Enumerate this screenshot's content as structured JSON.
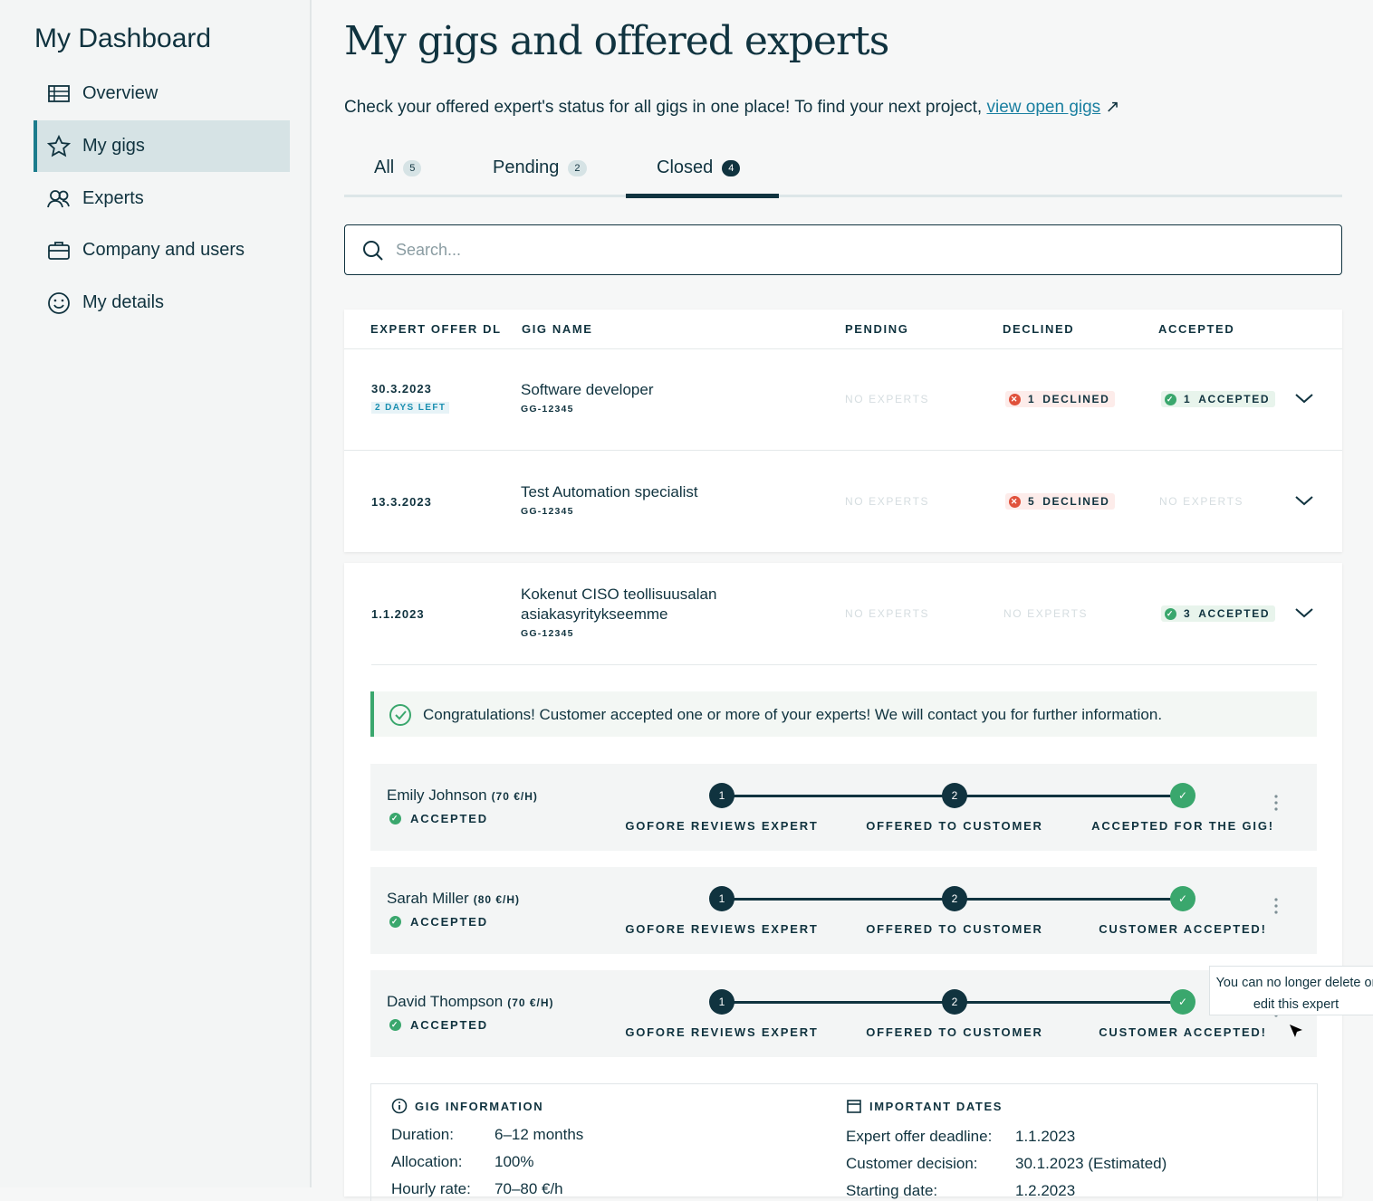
{
  "sidebar": {
    "title": "My Dashboard",
    "nav": [
      "Overview",
      "My gigs",
      "Experts",
      "Company and users",
      "My details"
    ]
  },
  "main": {
    "title": "My gigs and offered experts",
    "intro": "Check your offered expert's status for all gigs in one place! To find your next project,",
    "link": "view open gigs",
    "tabs": [
      {
        "label": "All",
        "count": 5
      },
      {
        "label": "Pending",
        "count": 2
      },
      {
        "label": "Closed",
        "count": 4
      }
    ],
    "search": "Search...",
    "table": {
      "headers": [
        "EXPERT OFFER DL",
        "GIG NAME",
        "PENDING",
        "DECLINED",
        "ACCEPTED"
      ],
      "rows": [
        {
          "date": "30.3.2023",
          "days_left": "2 DAYS LEFT",
          "name": "Software developer",
          "code": "GG-12345",
          "pending": "NO EXPERTS",
          "declined": {
            "count": 1,
            "label": "DECLINED"
          },
          "accepted": {
            "count": 1,
            "label": "ACCEPTED"
          }
        },
        {
          "date": "13.3.2023",
          "name": "Test Automation specialist",
          "code": "GG-12345",
          "pending": "NO EXPERTS",
          "declined": {
            "count": 5,
            "label": "DECLINED"
          },
          "accepted": "NO EXPERTS"
        },
        {
          "date": "1.1.2023",
          "name": "Kokenut CISO teollisuusalan asiakasyritykseemme",
          "code": "GG-12345",
          "pending": "NO EXPERTS",
          "declined": "NO EXPERTS",
          "accepted": {
            "count": 3,
            "label": "ACCEPTED"
          }
        }
      ]
    },
    "notice": "Congratulations! Customer accepted one or more of your experts! We will contact you for further information.",
    "experts": [
      {
        "name": "Emily Johnson",
        "rate": "(70 €/H)",
        "status": "ACCEPTED",
        "steps": [
          {
            "num": "1",
            "label": "GOFORE REVIEWS EXPERT"
          },
          {
            "num": "2",
            "label": "OFFERED TO CUSTOMER"
          },
          {
            "label": "ACCEPTED FOR THE GIG!"
          }
        ]
      },
      {
        "name": "Sarah Miller",
        "rate": "(80 €/H)",
        "status": "ACCEPTED",
        "steps": [
          {
            "num": "1",
            "label": "GOFORE REVIEWS EXPERT"
          },
          {
            "num": "2",
            "label": "OFFERED TO CUSTOMER"
          },
          {
            "label": "CUSTOMER ACCEPTED!"
          }
        ]
      },
      {
        "name": "David Thompson",
        "rate": "(70 €/H)",
        "status": "ACCEPTED",
        "steps": [
          {
            "num": "1",
            "label": "GOFORE REVIEWS EXPERT"
          },
          {
            "num": "2",
            "label": "OFFERED TO CUSTOMER"
          },
          {
            "label": "CUSTOMER ACCEPTED!"
          }
        ]
      }
    ],
    "tooltip": "You can no longer delete or edit this expert",
    "gig_info": {
      "title": "GIG INFORMATION",
      "fields": [
        [
          "Duration:",
          "6–12 months"
        ],
        [
          "Allocation:",
          "100%"
        ],
        [
          "Hourly rate:",
          "70–80 €/h"
        ]
      ]
    },
    "dates": {
      "title": "IMPORTANT DATES",
      "fields": [
        [
          "Expert offer deadline:",
          "1.1.2023"
        ],
        [
          "Customer decision:",
          "30.1.2023 (Estimated)"
        ],
        [
          "Starting date:",
          "1.2.2023"
        ]
      ]
    }
  }
}
